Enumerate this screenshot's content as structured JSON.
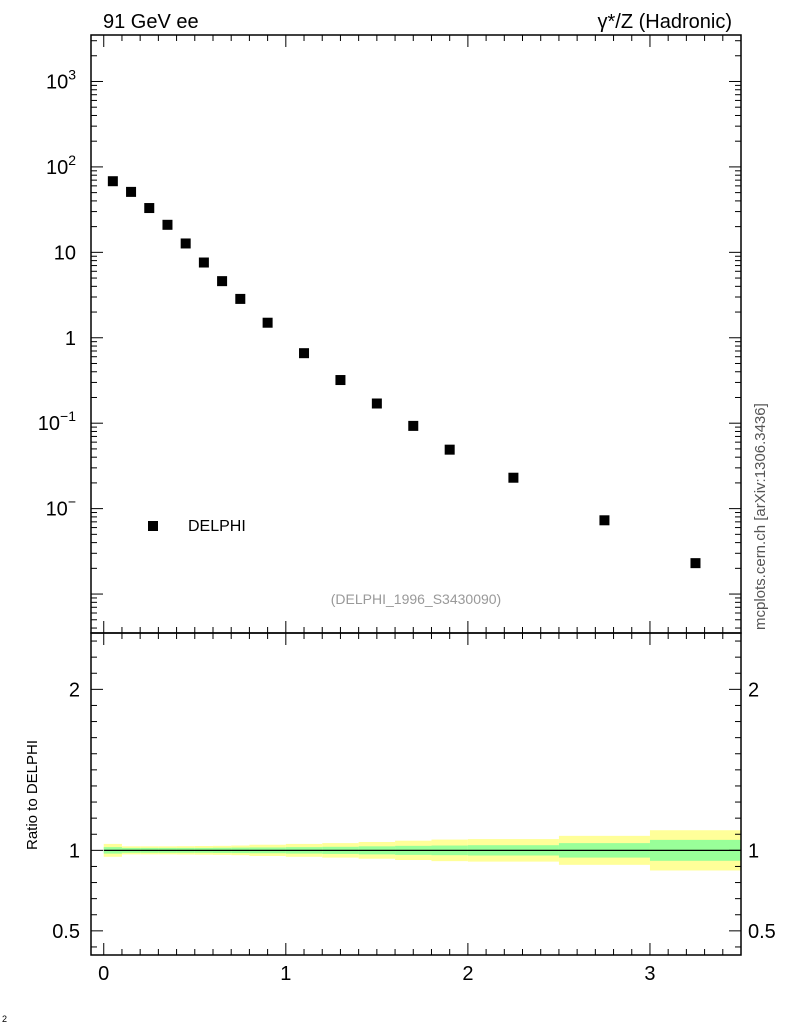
{
  "header": {
    "left": "91 GeV ee",
    "right": "γ*/Z (Hadronic)"
  },
  "side_label": "mcplots.cern.ch [arXiv:1306.3436]",
  "analysis_id": "(DELPHI_1996_S3430090)",
  "corner_mark": "2",
  "chart_data": [
    {
      "type": "scatter",
      "yscale": "log",
      "ylim": [
        0.00035,
        3500
      ],
      "xlim": [
        -0.07,
        3.5
      ],
      "y_tick_labels": [
        {
          "value": 1000,
          "base": "10",
          "exp": "3"
        },
        {
          "value": 100,
          "base": "10",
          "exp": "2"
        },
        {
          "value": 10,
          "base": "10",
          "exp": ""
        },
        {
          "value": 1,
          "base": "1",
          "exp": ""
        },
        {
          "value": 0.1,
          "base": "10",
          "exp": "−1"
        },
        {
          "value": 0.01,
          "base": "10",
          "exp": "−"
        }
      ],
      "legend": {
        "entry": "DELPHI",
        "position": "lower-left"
      },
      "series": [
        {
          "name": "DELPHI",
          "color": "#000000",
          "x": [
            0.05,
            0.15,
            0.25,
            0.35,
            0.45,
            0.55,
            0.65,
            0.75,
            0.9,
            1.1,
            1.3,
            1.5,
            1.7,
            1.9,
            2.25,
            2.75,
            3.25
          ],
          "y": [
            68,
            51,
            33,
            21,
            12.7,
            7.6,
            4.6,
            2.85,
            1.5,
            0.66,
            0.32,
            0.17,
            0.093,
            0.049,
            0.023,
            0.0073,
            0.0023
          ]
        }
      ]
    },
    {
      "type": "area",
      "ylabel": "Ratio to DELPHI",
      "ylim": [
        0.35,
        2.35
      ],
      "xlim": [
        -0.07,
        3.5
      ],
      "y_ticks": [
        {
          "value": 0.5,
          "label": "0.5"
        },
        {
          "value": 1,
          "label": "1"
        },
        {
          "value": 2,
          "label": "2"
        }
      ],
      "x_ticks": [
        {
          "value": 0,
          "label": "0"
        },
        {
          "value": 1,
          "label": "1"
        },
        {
          "value": 2,
          "label": "2"
        },
        {
          "value": 3,
          "label": "3"
        }
      ],
      "reference_line": 1,
      "bins": [
        0,
        0.1,
        0.2,
        0.3,
        0.4,
        0.5,
        0.6,
        0.7,
        0.8,
        1.0,
        1.2,
        1.4,
        1.6,
        1.8,
        2.0,
        2.5,
        3.0,
        3.5
      ],
      "inner_band": {
        "color": "#99ff99",
        "lo": [
          0.98,
          0.985,
          0.985,
          0.985,
          0.985,
          0.985,
          0.984,
          0.983,
          0.982,
          0.98,
          0.978,
          0.975,
          0.972,
          0.97,
          0.968,
          0.955,
          0.935
        ],
        "hi": [
          1.02,
          1.015,
          1.015,
          1.015,
          1.015,
          1.015,
          1.016,
          1.017,
          1.018,
          1.02,
          1.022,
          1.025,
          1.028,
          1.03,
          1.032,
          1.045,
          1.065
        ]
      },
      "outer_band": {
        "color": "#ffff99",
        "lo": [
          0.96,
          0.975,
          0.975,
          0.975,
          0.974,
          0.973,
          0.972,
          0.97,
          0.965,
          0.96,
          0.955,
          0.948,
          0.94,
          0.933,
          0.93,
          0.91,
          0.875
        ],
        "hi": [
          1.04,
          1.025,
          1.025,
          1.025,
          1.026,
          1.027,
          1.028,
          1.03,
          1.035,
          1.04,
          1.045,
          1.052,
          1.06,
          1.067,
          1.07,
          1.09,
          1.125
        ]
      }
    }
  ]
}
